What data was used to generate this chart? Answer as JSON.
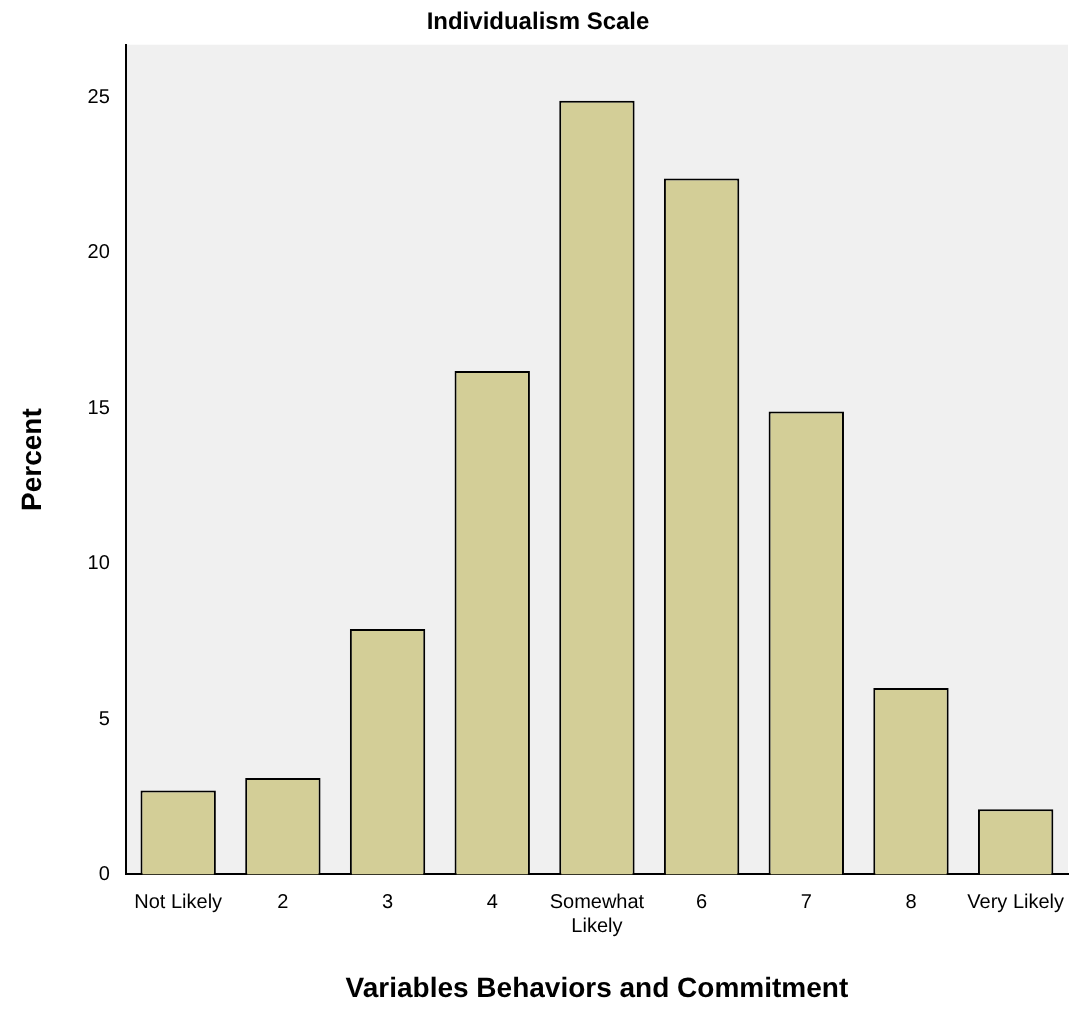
{
  "chart_data": {
    "type": "bar",
    "title": "Individualism Scale",
    "xlabel": "Variables Behaviors and Commitment",
    "ylabel": "Percent",
    "categories": [
      "Not Likely",
      "2",
      "3",
      "4",
      "Somewhat Likely",
      "6",
      "7",
      "8",
      "Very Likely"
    ],
    "values": [
      2.7,
      3.1,
      7.9,
      16.2,
      24.9,
      22.4,
      14.9,
      6.0,
      2.1
    ],
    "color": "#d3ce97",
    "ylim": [
      0,
      26.7
    ],
    "yticks": [
      0,
      5,
      10,
      15,
      20,
      25
    ],
    "grid": false,
    "legend": false
  }
}
